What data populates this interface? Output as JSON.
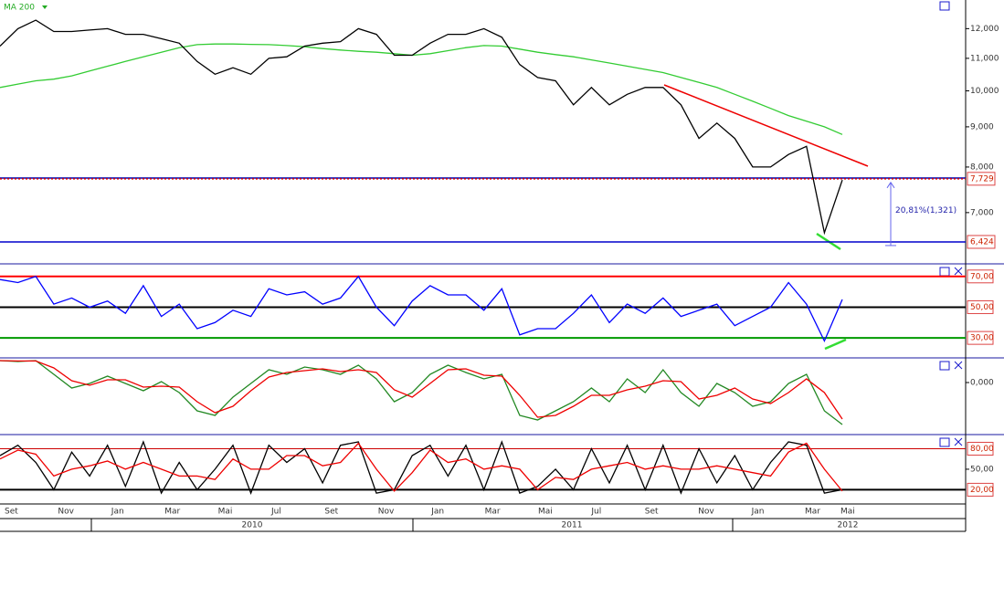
{
  "chart_data": [
    {
      "type": "line",
      "log_scale": true,
      "ylim": [
        6040,
        13050
      ],
      "yticks": [
        {
          "value": 12000,
          "label": "12,000"
        },
        {
          "value": 11000,
          "label": "11,000"
        },
        {
          "value": 10000,
          "label": "10,000"
        },
        {
          "value": 9000,
          "label": "9,000"
        },
        {
          "value": 8000,
          "label": "8,000"
        },
        {
          "value": 7000,
          "label": "7,000"
        }
      ],
      "series": [
        {
          "name": "MA 200",
          "color": "#33cc33",
          "values": [
            10100,
            10200,
            10300,
            10350,
            10450,
            10600,
            10750,
            10900,
            11050,
            11200,
            11350,
            11450,
            11470,
            11470,
            11460,
            11450,
            11420,
            11380,
            11320,
            11270,
            11230,
            11200,
            11150,
            11100,
            11150,
            11250,
            11350,
            11420,
            11400,
            11300,
            11200,
            11120,
            11050,
            10950,
            10850,
            10750,
            10650,
            10550,
            10400,
            10250,
            10100,
            9900,
            9700,
            9500,
            9300,
            9150,
            9000,
            8800
          ]
        },
        {
          "color": "#000000",
          "values": [
            11400,
            12000,
            12300,
            11900,
            11900,
            11950,
            12000,
            11800,
            11800,
            11650,
            11500,
            10900,
            10500,
            10700,
            10500,
            11000,
            11050,
            11400,
            11500,
            11550,
            12000,
            11800,
            11100,
            11100,
            11500,
            11800,
            11800,
            12000,
            11700,
            10800,
            10400,
            10300,
            9600,
            10100,
            9600,
            9900,
            10100,
            10100,
            9600,
            8700,
            9100,
            8700,
            8000,
            8000,
            8300,
            8500,
            6600,
            7700
          ]
        }
      ],
      "price_levels": [
        {
          "value": 7729,
          "label": "7,729"
        },
        {
          "value": 6424,
          "label": "6,424"
        }
      ],
      "price_level_colors": [
        "#dd0000",
        "#0000cc"
      ],
      "annotation": "20,81%(1,321)"
    },
    {
      "type": "line",
      "ylim": [
        17.6,
        77.6
      ],
      "yticks": [
        {
          "value": 70,
          "label": "70,00"
        },
        {
          "value": 50,
          "label": "50,00"
        },
        {
          "value": 30,
          "label": "30,00"
        }
      ],
      "grid_colors": [
        "#ff0000",
        "#000000",
        "#009900"
      ],
      "series": [
        {
          "color": "#0000ff",
          "values": [
            68,
            66,
            70,
            52,
            56,
            50,
            54,
            46,
            64,
            44,
            52,
            36,
            40,
            48,
            44,
            62,
            58,
            60,
            52,
            56,
            70,
            50,
            38,
            54,
            64,
            58,
            58,
            48,
            62,
            32,
            36,
            36,
            46,
            58,
            40,
            52,
            46,
            56,
            44,
            48,
            52,
            38,
            44,
            50,
            66,
            52,
            28,
            55
          ]
        }
      ]
    },
    {
      "type": "line",
      "ylim": [
        -280,
        130
      ],
      "yticks": [
        {
          "value": 0,
          "label": "0,000"
        }
      ],
      "series": [
        {
          "color": "#228822",
          "values": [
            120,
            115,
            120,
            45,
            -30,
            -5,
            35,
            -5,
            -45,
            5,
            -55,
            -155,
            -180,
            -80,
            -5,
            70,
            45,
            85,
            70,
            45,
            95,
            20,
            -105,
            -55,
            45,
            95,
            55,
            20,
            45,
            -180,
            -205,
            -155,
            -105,
            -30,
            -105,
            20,
            -55,
            70,
            -55,
            -130,
            -5,
            -55,
            -130,
            -105,
            -5,
            45,
            -155,
            -230
          ]
        },
        {
          "color": "#ee0000",
          "values": [
            120,
            118,
            118,
            80,
            10,
            -15,
            15,
            15,
            -25,
            -20,
            -25,
            -105,
            -165,
            -130,
            -45,
            30,
            55,
            65,
            75,
            60,
            70,
            55,
            -40,
            -80,
            -5,
            70,
            75,
            40,
            35,
            -70,
            -190,
            -180,
            -130,
            -70,
            -70,
            -40,
            -20,
            10,
            5,
            -90,
            -70,
            -30,
            -90,
            -115,
            -55,
            20,
            -55,
            -200
          ]
        }
      ]
    },
    {
      "type": "line",
      "ylim": [
        0.5,
        98
      ],
      "yticks": [
        {
          "value": 80,
          "label": "80,00"
        },
        {
          "value": 50,
          "label": "50,00"
        },
        {
          "value": 20,
          "label": "20,00"
        }
      ],
      "grid_colors": [
        "#cc0000",
        null,
        "#000000"
      ],
      "series": [
        {
          "color": "#000000",
          "values": [
            70,
            85,
            60,
            20,
            75,
            40,
            85,
            25,
            90,
            15,
            60,
            20,
            50,
            85,
            15,
            85,
            60,
            80,
            30,
            85,
            90,
            15,
            20,
            70,
            85,
            40,
            85,
            20,
            90,
            15,
            25,
            50,
            20,
            80,
            30,
            85,
            20,
            85,
            15,
            80,
            30,
            70,
            20,
            60,
            90,
            85,
            15,
            20
          ]
        },
        {
          "color": "#ee0000",
          "values": [
            65,
            78,
            72,
            40,
            50,
            55,
            62,
            50,
            60,
            50,
            40,
            40,
            35,
            65,
            50,
            50,
            70,
            70,
            55,
            60,
            88,
            50,
            18,
            45,
            78,
            60,
            65,
            50,
            55,
            50,
            20,
            38,
            35,
            50,
            55,
            60,
            50,
            55,
            50,
            50,
            55,
            50,
            45,
            40,
            75,
            88,
            50,
            18
          ]
        }
      ]
    }
  ],
  "time_axis": {
    "months": [
      "Set",
      "Nov",
      "Jan",
      "Mar",
      "Mai",
      "Jul",
      "Set",
      "Nov",
      "Jan",
      "Mar",
      "Mai",
      "Jul",
      "Set",
      "Nov",
      "Jan",
      "Mar",
      "Mai"
    ],
    "years": [
      "2010",
      "2011",
      "2012"
    ]
  }
}
